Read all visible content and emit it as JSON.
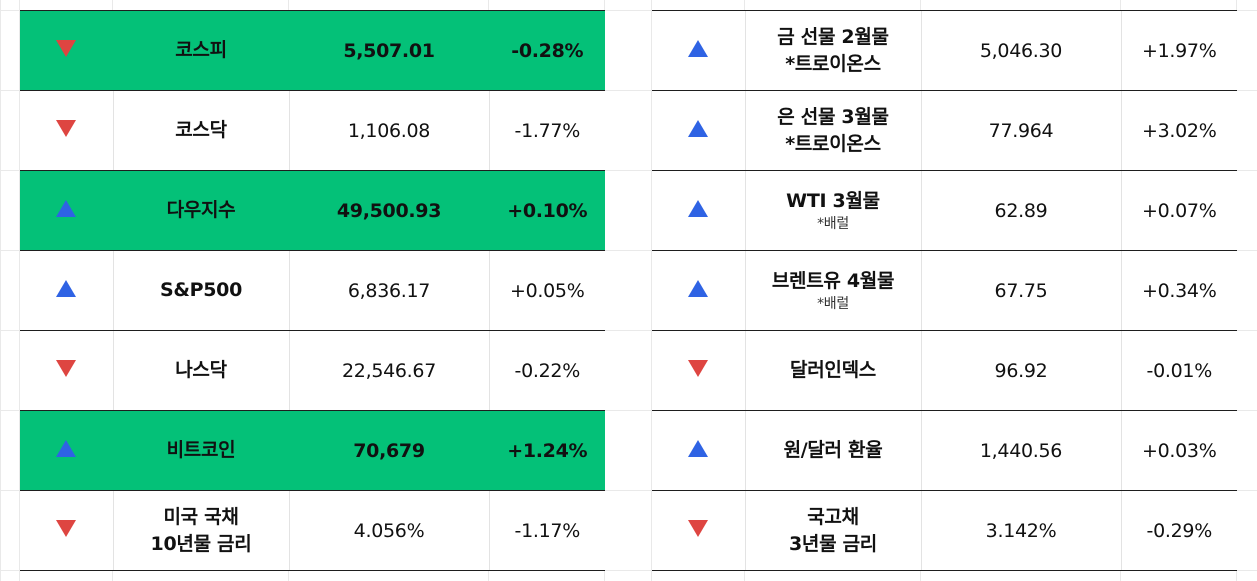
{
  "left_rows": [
    {
      "dir": "down",
      "name": "코스피",
      "sub": "",
      "value": "5,507.01",
      "change": "-0.28%",
      "highlight": true
    },
    {
      "dir": "down",
      "name": "코스닥",
      "sub": "",
      "value": "1,106.08",
      "change": "-1.77%",
      "highlight": false
    },
    {
      "dir": "up",
      "name": "다우지수",
      "sub": "",
      "value": "49,500.93",
      "change": "+0.10%",
      "highlight": true
    },
    {
      "dir": "up",
      "name": "S&P500",
      "sub": "",
      "value": "6,836.17",
      "change": "+0.05%",
      "highlight": false
    },
    {
      "dir": "down",
      "name": "나스닥",
      "sub": "",
      "value": "22,546.67",
      "change": "-0.22%",
      "highlight": false
    },
    {
      "dir": "up",
      "name": "비트코인",
      "sub": "",
      "value": "70,679",
      "change": "+1.24%",
      "highlight": true
    },
    {
      "dir": "down",
      "name": "미국 국채\n10년물 금리",
      "sub": "",
      "value": "4.056%",
      "change": "-1.17%",
      "highlight": false
    }
  ],
  "right_rows": [
    {
      "dir": "up",
      "name": "금 선물 2월물\n*트로이온스",
      "sub": "",
      "value": "5,046.30",
      "change": "+1.97%",
      "highlight": false
    },
    {
      "dir": "up",
      "name": "은 선물 3월물\n*트로이온스",
      "sub": "",
      "value": "77.964",
      "change": "+3.02%",
      "highlight": false
    },
    {
      "dir": "up",
      "name": "WTI 3월물",
      "sub": "*배럴",
      "value": "62.89",
      "change": "+0.07%",
      "highlight": false
    },
    {
      "dir": "up",
      "name": "브렌트유 4월물",
      "sub": "*배럴",
      "value": "67.75",
      "change": "+0.34%",
      "highlight": false
    },
    {
      "dir": "down",
      "name": "달러인덱스",
      "sub": "",
      "value": "96.92",
      "change": "-0.01%",
      "highlight": false
    },
    {
      "dir": "up",
      "name": "원/달러 환율",
      "sub": "",
      "value": "1,440.56",
      "change": "+0.03%",
      "highlight": false
    },
    {
      "dir": "down",
      "name": "국고채\n3년물 금리",
      "sub": "",
      "value": "3.142%",
      "change": "-0.29%",
      "highlight": false
    }
  ],
  "icons": {
    "up": "triangle-up-icon",
    "down": "triangle-down-icon"
  },
  "colors": {
    "highlight": "#04c178",
    "up": "#2f63e4",
    "down": "#de4541"
  }
}
